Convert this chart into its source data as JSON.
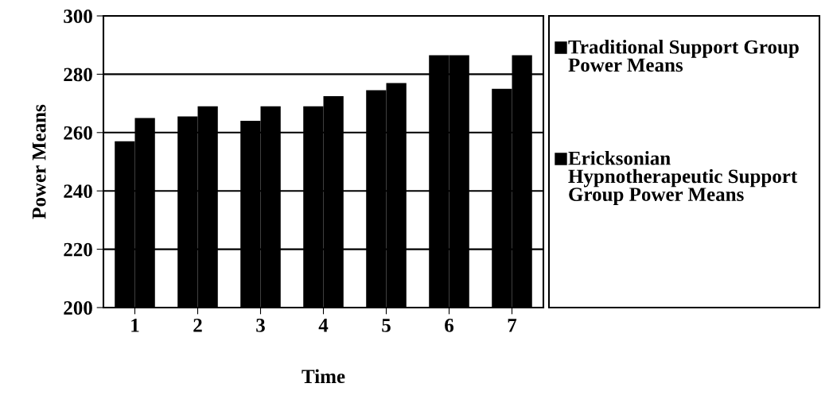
{
  "chart_data": {
    "type": "bar",
    "xlabel": "Time",
    "ylabel": "Power Means",
    "categories": [
      "1",
      "2",
      "3",
      "4",
      "5",
      "6",
      "7"
    ],
    "series": [
      {
        "name": "Traditional Support Group Power Means",
        "color": "#000000",
        "values": [
          257,
          265.5,
          264,
          269,
          274.5,
          286.5,
          275
        ]
      },
      {
        "name": "Ericksonian Hypnotherapeutic Support Group Power Means",
        "color": "#000000",
        "values": [
          265,
          269,
          269,
          272.5,
          277,
          286.5,
          286.5
        ]
      }
    ],
    "ylim": [
      200,
      300
    ],
    "yticks": [
      200,
      220,
      240,
      260,
      280,
      300
    ],
    "grid": "y",
    "legend": "right"
  }
}
